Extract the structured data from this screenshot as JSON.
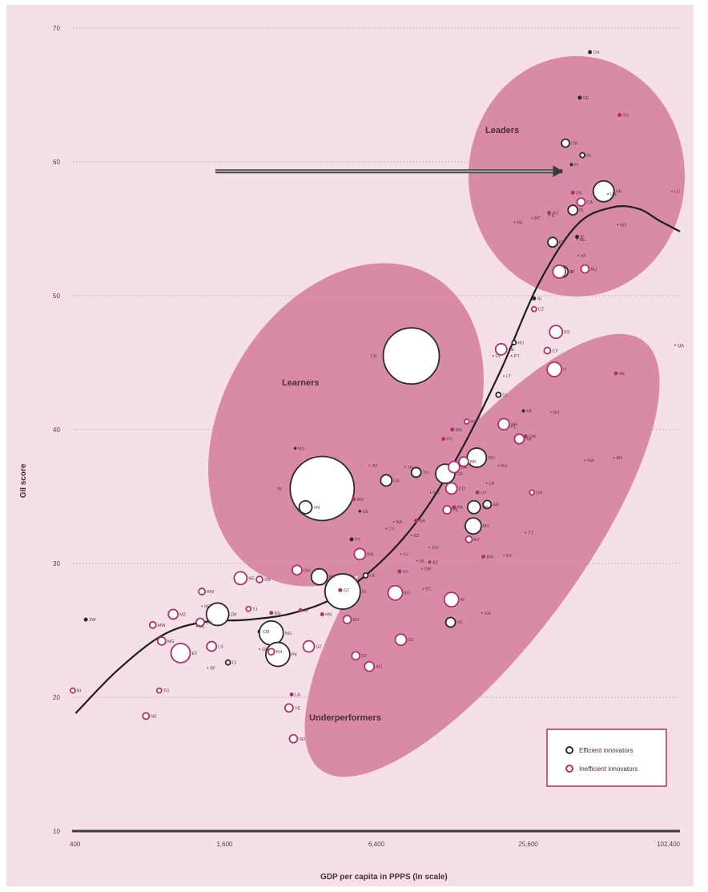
{
  "chart_data": {
    "type": "scatter",
    "xlabel": "GDP per capita in PPPS (ln scale)",
    "ylabel": "GII score",
    "x_scale": "log",
    "xlim": [
      400,
      102400
    ],
    "ylim": [
      10,
      70
    ],
    "x_ticks": [
      400,
      1600,
      6400,
      25600,
      102400
    ],
    "x_tick_labels": [
      "400",
      "1,600",
      "6,400",
      "25,600",
      "102,400"
    ],
    "y_ticks": [
      10,
      20,
      30,
      40,
      50,
      60,
      70
    ],
    "y_tick_labels": [
      "10",
      "20",
      "30",
      "40",
      "50",
      "60",
      "70"
    ],
    "grid": "horizontal dotted",
    "legend_position": "bottom-right",
    "legend": [
      {
        "label": "Efficient innovators",
        "color": "#2b2b2b"
      },
      {
        "label": "Inefficient innovators",
        "color": "#b0306a"
      }
    ],
    "regions": [
      "Leaders",
      "Learners",
      "Underperformers"
    ],
    "background_color": "#f5e0e7",
    "region_color": "#d98aa6",
    "series": [
      {
        "name": "Efficient innovators",
        "color": "#2b2b2b",
        "points": [
          {
            "label": "CH",
            "x": 45000,
            "y": 68.2,
            "r": 2
          },
          {
            "label": "SE",
            "x": 41000,
            "y": 64.8,
            "r": 2
          },
          {
            "label": "GB",
            "x": 36000,
            "y": 61.4,
            "r": 5
          },
          {
            "label": "NL",
            "x": 42000,
            "y": 60.5,
            "r": 3
          },
          {
            "label": "FI",
            "x": 38000,
            "y": 59.8,
            "r": 1.5
          },
          {
            "label": "HK",
            "x": 51000,
            "y": 57.8,
            "r": 13
          },
          {
            "label": "IS",
            "x": 38500,
            "y": 56.4,
            "r": 6
          },
          {
            "label": "IE",
            "x": 40000,
            "y": 54.4,
            "r": 2
          },
          {
            "label": "KR",
            "x": 32000,
            "y": 54.0,
            "r": 6
          },
          {
            "label": "JP",
            "x": 35000,
            "y": 51.8,
            "r": 7
          },
          {
            "label": "SI",
            "x": 27000,
            "y": 49.8,
            "r": 2
          },
          {
            "label": "HU",
            "x": 22500,
            "y": 46.5,
            "r": 2.5
          },
          {
            "label": "CL",
            "x": 19500,
            "y": 42.6,
            "r": 3
          },
          {
            "label": "CN",
            "x": 8800,
            "y": 45.5,
            "r": 35
          },
          {
            "label": "IN",
            "x": 3900,
            "y": 35.6,
            "r": 40
          },
          {
            "label": "VN",
            "x": 3350,
            "y": 34.2,
            "r": 8
          },
          {
            "label": "MU",
            "x": 16000,
            "y": 37.9,
            "r": 12
          },
          {
            "label": "CR",
            "x": 12000,
            "y": 36.7,
            "r": 12
          },
          {
            "label": "TH",
            "x": 9200,
            "y": 36.8,
            "r": 6
          },
          {
            "label": "UA",
            "x": 7000,
            "y": 36.2,
            "r": 7
          },
          {
            "label": "TR",
            "x": 15600,
            "y": 34.2,
            "r": 8
          },
          {
            "label": "AR",
            "x": 17600,
            "y": 34.4,
            "r": 5
          },
          {
            "label": "MX",
            "x": 15500,
            "y": 32.8,
            "r": 10
          },
          {
            "label": "PH",
            "x": 3800,
            "y": 29.0,
            "r": 10
          },
          {
            "label": "LK",
            "x": 5800,
            "y": 29.1,
            "r": 3
          },
          {
            "label": "ID",
            "x": 4700,
            "y": 27.9,
            "r": 22
          },
          {
            "label": "ZM",
            "x": 1500,
            "y": 26.2,
            "r": 14
          },
          {
            "label": "CM",
            "x": 2200,
            "y": 24.9,
            "r": 2
          },
          {
            "label": "NG",
            "x": 2450,
            "y": 24.8,
            "r": 15
          },
          {
            "label": "PK",
            "x": 2600,
            "y": 23.2,
            "r": 15
          },
          {
            "label": "CI",
            "x": 1650,
            "y": 22.6,
            "r": 3
          },
          {
            "label": "ZW",
            "x": 450,
            "y": 25.8,
            "r": 2
          },
          {
            "label": "VE",
            "x": 12600,
            "y": 25.6,
            "r": 6
          },
          {
            "label": "SK",
            "x": 24500,
            "y": 41.4,
            "r": 1.5
          },
          {
            "label": "MD",
            "x": 3050,
            "y": 38.6,
            "r": 1.2
          },
          {
            "label": "GE",
            "x": 5500,
            "y": 33.9,
            "r": 1.2
          },
          {
            "label": "PY",
            "x": 5100,
            "y": 31.8,
            "r": 2
          }
        ]
      },
      {
        "name": "Inefficient innovators",
        "color": "#b0306a",
        "points": [
          {
            "label": "SG",
            "x": 59000,
            "y": 63.5,
            "r": 2
          },
          {
            "label": "DK",
            "x": 38500,
            "y": 57.7,
            "r": 2
          },
          {
            "label": "CA",
            "x": 41500,
            "y": 57.0,
            "r": 5
          },
          {
            "label": "NZ",
            "x": 31000,
            "y": 56.2,
            "r": 2
          },
          {
            "label": "FR",
            "x": 34000,
            "y": 51.8,
            "r": 8
          },
          {
            "label": "AU",
            "x": 43000,
            "y": 52.0,
            "r": 5
          },
          {
            "label": "CZ",
            "x": 27000,
            "y": 49.0,
            "r": 3
          },
          {
            "label": "ES",
            "x": 33000,
            "y": 47.3,
            "r": 8
          },
          {
            "label": "EE",
            "x": 20000,
            "y": 46.0,
            "r": 7
          },
          {
            "label": "IT",
            "x": 32500,
            "y": 44.5,
            "r": 9
          },
          {
            "label": "AE",
            "x": 57000,
            "y": 44.2,
            "r": 2
          },
          {
            "label": "HR",
            "x": 20500,
            "y": 40.4,
            "r": 7
          },
          {
            "label": "SA",
            "x": 23600,
            "y": 39.3,
            "r": 6
          },
          {
            "label": "BG",
            "x": 14600,
            "y": 40.6,
            "r": 3
          },
          {
            "label": "ME",
            "x": 12800,
            "y": 40.0,
            "r": 2
          },
          {
            "label": "RS",
            "x": 11800,
            "y": 39.3,
            "r": 2
          },
          {
            "label": "BR",
            "x": 14200,
            "y": 37.6,
            "r": 6
          },
          {
            "label": "ZA",
            "x": 13000,
            "y": 37.2,
            "r": 7
          },
          {
            "label": "CO",
            "x": 12700,
            "y": 35.6,
            "r": 7
          },
          {
            "label": "PE",
            "x": 12200,
            "y": 34.0,
            "r": 5
          },
          {
            "label": "GR",
            "x": 26500,
            "y": 35.3,
            "r": 3
          },
          {
            "label": "KZ",
            "x": 14900,
            "y": 31.8,
            "r": 4
          },
          {
            "label": "BW",
            "x": 17000,
            "y": 30.5,
            "r": 2
          },
          {
            "label": "MA",
            "x": 5500,
            "y": 30.7,
            "r": 7
          },
          {
            "label": "GH",
            "x": 3100,
            "y": 29.5,
            "r": 6
          },
          {
            "label": "KE",
            "x": 1850,
            "y": 28.9,
            "r": 8
          },
          {
            "label": "SN",
            "x": 2200,
            "y": 28.8,
            "r": 4
          },
          {
            "label": "KG",
            "x": 2450,
            "y": 26.3,
            "r": 2
          },
          {
            "label": "NI",
            "x": 3200,
            "y": 26.5,
            "r": 2
          },
          {
            "label": "EG",
            "x": 7600,
            "y": 27.8,
            "r": 9
          },
          {
            "label": "BO",
            "x": 4900,
            "y": 25.8,
            "r": 5
          },
          {
            "label": "IR",
            "x": 12700,
            "y": 27.3,
            "r": 9
          },
          {
            "label": "DZ",
            "x": 8000,
            "y": 24.3,
            "r": 7
          },
          {
            "label": "UZ",
            "x": 3450,
            "y": 23.8,
            "r": 7
          },
          {
            "label": "KH",
            "x": 2450,
            "y": 23.4,
            "r": 4
          },
          {
            "label": "SY",
            "x": 5300,
            "y": 23.1,
            "r": 5
          },
          {
            "label": "AO",
            "x": 6000,
            "y": 22.3,
            "r": 6
          },
          {
            "label": "ET",
            "x": 1070,
            "y": 23.3,
            "r": 12
          },
          {
            "label": "MG",
            "x": 900,
            "y": 24.2,
            "r": 5
          },
          {
            "label": "MW",
            "x": 830,
            "y": 25.4,
            "r": 4
          },
          {
            "label": "MZ",
            "x": 1000,
            "y": 26.2,
            "r": 6
          },
          {
            "label": "UG",
            "x": 1280,
            "y": 25.6,
            "r": 5
          },
          {
            "label": "RW",
            "x": 1300,
            "y": 27.9,
            "r": 4
          },
          {
            "label": "TJ",
            "x": 1990,
            "y": 26.6,
            "r": 3
          },
          {
            "label": "LS",
            "x": 1420,
            "y": 23.8,
            "r": 6
          },
          {
            "label": "TG",
            "x": 880,
            "y": 20.5,
            "r": 3
          },
          {
            "label": "NE",
            "x": 780,
            "y": 18.6,
            "r": 4
          },
          {
            "label": "BI",
            "x": 400,
            "y": 20.5,
            "r": 3
          },
          {
            "label": "LA",
            "x": 2950,
            "y": 20.2,
            "r": 2
          },
          {
            "label": "YE",
            "x": 2880,
            "y": 19.2,
            "r": 5
          },
          {
            "label": "SD",
            "x": 3000,
            "y": 16.9,
            "r": 5
          },
          {
            "label": "CY",
            "x": 30500,
            "y": 45.9,
            "r": 4
          },
          {
            "label": "UY",
            "x": 16100,
            "y": 35.3,
            "r": 2
          },
          {
            "label": "PA",
            "x": 13000,
            "y": 34.2,
            "r": 2
          },
          {
            "label": "OM",
            "x": 25000,
            "y": 39.5,
            "r": 2
          },
          {
            "label": "AM",
            "x": 5200,
            "y": 34.8,
            "r": 2
          },
          {
            "label": "BA",
            "x": 9200,
            "y": 33.2,
            "r": 2
          },
          {
            "label": "AZ",
            "x": 10400,
            "y": 30.1,
            "r": 1.5
          },
          {
            "label": "SV",
            "x": 7900,
            "y": 29.4,
            "r": 2
          },
          {
            "label": "HN",
            "x": 3900,
            "y": 26.2,
            "r": 2
          },
          {
            "label": "GT",
            "x": 4600,
            "y": 28.0,
            "r": 2
          }
        ]
      }
    ],
    "unmarked_labels": [
      {
        "label": "LU",
        "x": 95000,
        "y": 57.8
      },
      {
        "label": "US",
        "x": 53000,
        "y": 57.6
      },
      {
        "label": "NO",
        "x": 58000,
        "y": 55.3
      },
      {
        "label": "BE",
        "x": 40000,
        "y": 54.2
      },
      {
        "label": "AT",
        "x": 40500,
        "y": 53.0
      },
      {
        "label": "IL",
        "x": 31000,
        "y": 56.0
      },
      {
        "label": "MT",
        "x": 26500,
        "y": 55.8
      },
      {
        "label": "EE",
        "x": 22600,
        "y": 55.5
      },
      {
        "label": "LV",
        "x": 18600,
        "y": 45.5
      },
      {
        "label": "LT",
        "x": 20500,
        "y": 44.0
      },
      {
        "label": "PT",
        "x": 22000,
        "y": 45.5
      },
      {
        "label": "PL",
        "x": 21400,
        "y": 40.2
      },
      {
        "label": "BH",
        "x": 31500,
        "y": 41.3
      },
      {
        "label": "QA",
        "x": 98000,
        "y": 46.3
      },
      {
        "label": "KW",
        "x": 43000,
        "y": 37.7
      },
      {
        "label": "BN",
        "x": 56000,
        "y": 37.9
      },
      {
        "label": "TT",
        "x": 25000,
        "y": 32.3
      },
      {
        "label": "BY",
        "x": 20500,
        "y": 30.6
      },
      {
        "label": "LB",
        "x": 17500,
        "y": 36.0
      },
      {
        "label": "RU",
        "x": 19500,
        "y": 37.3
      },
      {
        "label": "MK",
        "x": 10500,
        "y": 35.3
      },
      {
        "label": "JO",
        "x": 6000,
        "y": 37.3
      },
      {
        "label": "TN",
        "x": 8300,
        "y": 37.2
      },
      {
        "label": "NA",
        "x": 7500,
        "y": 33.1
      },
      {
        "label": "BZ",
        "x": 8800,
        "y": 32.1
      },
      {
        "label": "CV",
        "x": 7000,
        "y": 32.6
      },
      {
        "label": "FJ",
        "x": 8000,
        "y": 30.7
      },
      {
        "label": "DO",
        "x": 10400,
        "y": 31.2
      },
      {
        "label": "AL",
        "x": 9300,
        "y": 30.2
      },
      {
        "label": "DM",
        "x": 9700,
        "y": 29.6
      },
      {
        "label": "EC",
        "x": 9800,
        "y": 28.1
      },
      {
        "label": "GA",
        "x": 16800,
        "y": 26.3
      },
      {
        "label": "NP",
        "x": 1300,
        "y": 26.8
      },
      {
        "label": "ML",
        "x": 1240,
        "y": 25.3
      },
      {
        "label": "BF",
        "x": 1370,
        "y": 22.2
      },
      {
        "label": "GM",
        "x": 2200,
        "y": 23.6
      }
    ],
    "curve": [
      {
        "x": 410,
        "y": 18.8
      },
      {
        "x": 600,
        "y": 22.0
      },
      {
        "x": 900,
        "y": 24.6
      },
      {
        "x": 1300,
        "y": 25.6
      },
      {
        "x": 2000,
        "y": 25.8
      },
      {
        "x": 3000,
        "y": 26.3
      },
      {
        "x": 4500,
        "y": 27.6
      },
      {
        "x": 7000,
        "y": 30.5
      },
      {
        "x": 10000,
        "y": 34.0
      },
      {
        "x": 14000,
        "y": 38.6
      },
      {
        "x": 20000,
        "y": 44.5
      },
      {
        "x": 28000,
        "y": 50.8
      },
      {
        "x": 40000,
        "y": 55.3
      },
      {
        "x": 55000,
        "y": 56.6
      },
      {
        "x": 70000,
        "y": 56.5
      },
      {
        "x": 85000,
        "y": 55.6
      },
      {
        "x": 102400,
        "y": 54.8
      }
    ],
    "annotation_arrow": {
      "from": {
        "x": 1470,
        "y": 59.3
      },
      "to": {
        "x": 35000,
        "y": 59.3
      }
    }
  }
}
